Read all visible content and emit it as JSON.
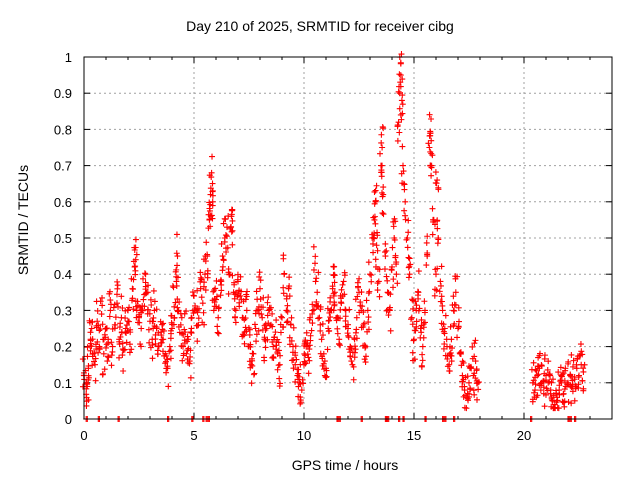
{
  "chart_data": {
    "type": "scatter",
    "title": "Day 210 of 2025, SRMTID for receiver cibg",
    "xlabel": "GPS time / hours",
    "ylabel": "SRMTID / TECUs",
    "xlim": [
      0,
      24
    ],
    "ylim": [
      0,
      1
    ],
    "xticks": [
      0,
      5,
      10,
      15,
      20
    ],
    "xtick_labels": [
      "0",
      "5",
      "10",
      "15",
      "20"
    ],
    "yticks": [
      0,
      0.1,
      0.2,
      0.3,
      0.4,
      0.5,
      0.6,
      0.7,
      0.8,
      0.9,
      1
    ],
    "ytick_labels": [
      "0",
      "0.1",
      "0.2",
      "0.3",
      "0.4",
      "0.5",
      "0.6",
      "0.7",
      "0.8",
      "0.9",
      "1"
    ],
    "grid": true,
    "marker": "+",
    "color": "#ff0000",
    "series": [
      {
        "name": "SRMTID",
        "points": [
          [
            0.0,
            0.12
          ],
          [
            0.1,
            0.1
          ],
          [
            0.15,
            0.09
          ],
          [
            0.2,
            0.14
          ],
          [
            0.3,
            0.22
          ],
          [
            0.35,
            0.25
          ],
          [
            0.4,
            0.18
          ],
          [
            0.5,
            0.15
          ],
          [
            0.6,
            0.27
          ],
          [
            0.7,
            0.2
          ],
          [
            0.8,
            0.29
          ],
          [
            0.9,
            0.18
          ],
          [
            1.0,
            0.25
          ],
          [
            1.1,
            0.22
          ],
          [
            1.2,
            0.3
          ],
          [
            1.3,
            0.2
          ],
          [
            1.4,
            0.26
          ],
          [
            1.5,
            0.32
          ],
          [
            1.6,
            0.22
          ],
          [
            1.7,
            0.28
          ],
          [
            1.8,
            0.19
          ],
          [
            1.9,
            0.25
          ],
          [
            2.0,
            0.3
          ],
          [
            2.1,
            0.24
          ],
          [
            2.2,
            0.36
          ],
          [
            2.3,
            0.42
          ],
          [
            2.35,
            0.44
          ],
          [
            2.4,
            0.3
          ],
          [
            2.5,
            0.28
          ],
          [
            2.6,
            0.25
          ],
          [
            2.7,
            0.33
          ],
          [
            2.8,
            0.4
          ],
          [
            2.9,
            0.35
          ],
          [
            3.0,
            0.27
          ],
          [
            3.1,
            0.22
          ],
          [
            3.2,
            0.3
          ],
          [
            3.3,
            0.25
          ],
          [
            3.4,
            0.2
          ],
          [
            3.5,
            0.24
          ],
          [
            3.6,
            0.22
          ],
          [
            3.7,
            0.18
          ],
          [
            3.8,
            0.14
          ],
          [
            3.9,
            0.2
          ],
          [
            4.0,
            0.25
          ],
          [
            4.1,
            0.31
          ],
          [
            4.2,
            0.38
          ],
          [
            4.25,
            0.45
          ],
          [
            4.3,
            0.3
          ],
          [
            4.4,
            0.26
          ],
          [
            4.5,
            0.2
          ],
          [
            4.6,
            0.24
          ],
          [
            4.7,
            0.19
          ],
          [
            4.8,
            0.16
          ],
          [
            4.9,
            0.28
          ],
          [
            5.0,
            0.34
          ],
          [
            5.1,
            0.3
          ],
          [
            5.2,
            0.26
          ],
          [
            5.3,
            0.36
          ],
          [
            5.4,
            0.32
          ],
          [
            5.5,
            0.4
          ],
          [
            5.6,
            0.45
          ],
          [
            5.7,
            0.55
          ],
          [
            5.75,
            0.62
          ],
          [
            5.8,
            0.68
          ],
          [
            5.85,
            0.6
          ],
          [
            5.9,
            0.3
          ],
          [
            6.0,
            0.33
          ],
          [
            6.1,
            0.28
          ],
          [
            6.2,
            0.38
          ],
          [
            6.3,
            0.45
          ],
          [
            6.4,
            0.5
          ],
          [
            6.5,
            0.53
          ],
          [
            6.6,
            0.4
          ],
          [
            6.7,
            0.56
          ],
          [
            6.75,
            0.52
          ],
          [
            6.8,
            0.35
          ],
          [
            6.9,
            0.3
          ],
          [
            7.0,
            0.38
          ],
          [
            7.1,
            0.34
          ],
          [
            7.2,
            0.28
          ],
          [
            7.3,
            0.24
          ],
          [
            7.4,
            0.3
          ],
          [
            7.5,
            0.2
          ],
          [
            7.6,
            0.15
          ],
          [
            7.7,
            0.18
          ],
          [
            7.8,
            0.25
          ],
          [
            7.9,
            0.3
          ],
          [
            8.0,
            0.36
          ],
          [
            8.1,
            0.28
          ],
          [
            8.2,
            0.22
          ],
          [
            8.3,
            0.25
          ],
          [
            8.4,
            0.3
          ],
          [
            8.5,
            0.26
          ],
          [
            8.6,
            0.2
          ],
          [
            8.7,
            0.24
          ],
          [
            8.8,
            0.18
          ],
          [
            8.9,
            0.15
          ],
          [
            9.0,
            0.28
          ],
          [
            9.1,
            0.4
          ],
          [
            9.2,
            0.3
          ],
          [
            9.3,
            0.36
          ],
          [
            9.4,
            0.26
          ],
          [
            9.5,
            0.2
          ],
          [
            9.6,
            0.15
          ],
          [
            9.7,
            0.12
          ],
          [
            9.8,
            0.1
          ],
          [
            9.9,
            0.08
          ],
          [
            10.0,
            0.15
          ],
          [
            10.1,
            0.2
          ],
          [
            10.2,
            0.17
          ],
          [
            10.3,
            0.23
          ],
          [
            10.4,
            0.3
          ],
          [
            10.5,
            0.43
          ],
          [
            10.6,
            0.35
          ],
          [
            10.7,
            0.28
          ],
          [
            10.8,
            0.22
          ],
          [
            10.9,
            0.18
          ],
          [
            11.0,
            0.14
          ],
          [
            11.1,
            0.25
          ],
          [
            11.2,
            0.3
          ],
          [
            11.3,
            0.36
          ],
          [
            11.35,
            0.42
          ],
          [
            11.4,
            0.35
          ],
          [
            11.5,
            0.28
          ],
          [
            11.6,
            0.22
          ],
          [
            11.7,
            0.32
          ],
          [
            11.8,
            0.38
          ],
          [
            11.9,
            0.3
          ],
          [
            12.0,
            0.25
          ],
          [
            12.1,
            0.2
          ],
          [
            12.2,
            0.15
          ],
          [
            12.3,
            0.22
          ],
          [
            12.4,
            0.28
          ],
          [
            12.5,
            0.35
          ],
          [
            12.6,
            0.3
          ],
          [
            12.7,
            0.26
          ],
          [
            12.8,
            0.2
          ],
          [
            12.9,
            0.3
          ],
          [
            13.0,
            0.4
          ],
          [
            13.1,
            0.5
          ],
          [
            13.2,
            0.55
          ],
          [
            13.25,
            0.6
          ],
          [
            13.3,
            0.48
          ],
          [
            13.4,
            0.38
          ],
          [
            13.5,
            0.7
          ],
          [
            13.55,
            0.75
          ],
          [
            13.6,
            0.62
          ],
          [
            13.7,
            0.45
          ],
          [
            13.8,
            0.35
          ],
          [
            13.9,
            0.3
          ],
          [
            14.0,
            0.42
          ],
          [
            14.1,
            0.5
          ],
          [
            14.2,
            0.4
          ],
          [
            14.3,
            0.82
          ],
          [
            14.35,
            0.9
          ],
          [
            14.4,
            0.95
          ],
          [
            14.45,
            0.88
          ],
          [
            14.5,
            0.7
          ],
          [
            14.6,
            0.6
          ],
          [
            14.7,
            0.5
          ],
          [
            14.8,
            0.4
          ],
          [
            14.9,
            0.28
          ],
          [
            15.0,
            0.22
          ],
          [
            15.1,
            0.3
          ],
          [
            15.2,
            0.35
          ],
          [
            15.3,
            0.25
          ],
          [
            15.4,
            0.2
          ],
          [
            15.5,
            0.3
          ],
          [
            15.6,
            0.45
          ],
          [
            15.7,
            0.75
          ],
          [
            15.75,
            0.79
          ],
          [
            15.8,
            0.7
          ],
          [
            15.9,
            0.55
          ],
          [
            16.0,
            0.4
          ],
          [
            16.05,
            0.66
          ],
          [
            16.1,
            0.5
          ],
          [
            16.2,
            0.38
          ],
          [
            16.3,
            0.3
          ],
          [
            16.4,
            0.25
          ],
          [
            16.5,
            0.2
          ],
          [
            16.6,
            0.15
          ],
          [
            16.7,
            0.22
          ],
          [
            16.8,
            0.3
          ],
          [
            16.9,
            0.35
          ],
          [
            17.0,
            0.25
          ],
          [
            17.1,
            0.18
          ],
          [
            17.2,
            0.12
          ],
          [
            17.3,
            0.08
          ],
          [
            17.4,
            0.06
          ],
          [
            17.5,
            0.1
          ],
          [
            17.6,
            0.14
          ],
          [
            17.7,
            0.12
          ],
          [
            17.8,
            0.16
          ],
          [
            17.9,
            0.1
          ],
          [
            20.4,
            0.1
          ],
          [
            20.5,
            0.08
          ],
          [
            20.6,
            0.12
          ],
          [
            20.7,
            0.14
          ],
          [
            20.8,
            0.1
          ],
          [
            20.9,
            0.07
          ],
          [
            21.0,
            0.12
          ],
          [
            21.1,
            0.1
          ],
          [
            21.2,
            0.07
          ],
          [
            21.3,
            0.05
          ],
          [
            21.4,
            0.04
          ],
          [
            21.5,
            0.06
          ],
          [
            21.6,
            0.08
          ],
          [
            21.7,
            0.1
          ],
          [
            21.8,
            0.07
          ],
          [
            21.9,
            0.09
          ],
          [
            22.0,
            0.1
          ],
          [
            22.1,
            0.12
          ],
          [
            22.2,
            0.09
          ],
          [
            22.3,
            0.11
          ],
          [
            22.4,
            0.14
          ],
          [
            22.5,
            0.12
          ],
          [
            22.6,
            0.15
          ],
          [
            22.7,
            0.13
          ]
        ],
        "zero_points": [
          0.1,
          0.65,
          1.55,
          3.8,
          4.9,
          5.4,
          5.55,
          5.65,
          11.5,
          11.6,
          12.6,
          13.7,
          13.8,
          14.3,
          14.5,
          15.5,
          16.3,
          16.4,
          16.8,
          20.3,
          22.0,
          22.1,
          22.3
        ]
      }
    ]
  }
}
